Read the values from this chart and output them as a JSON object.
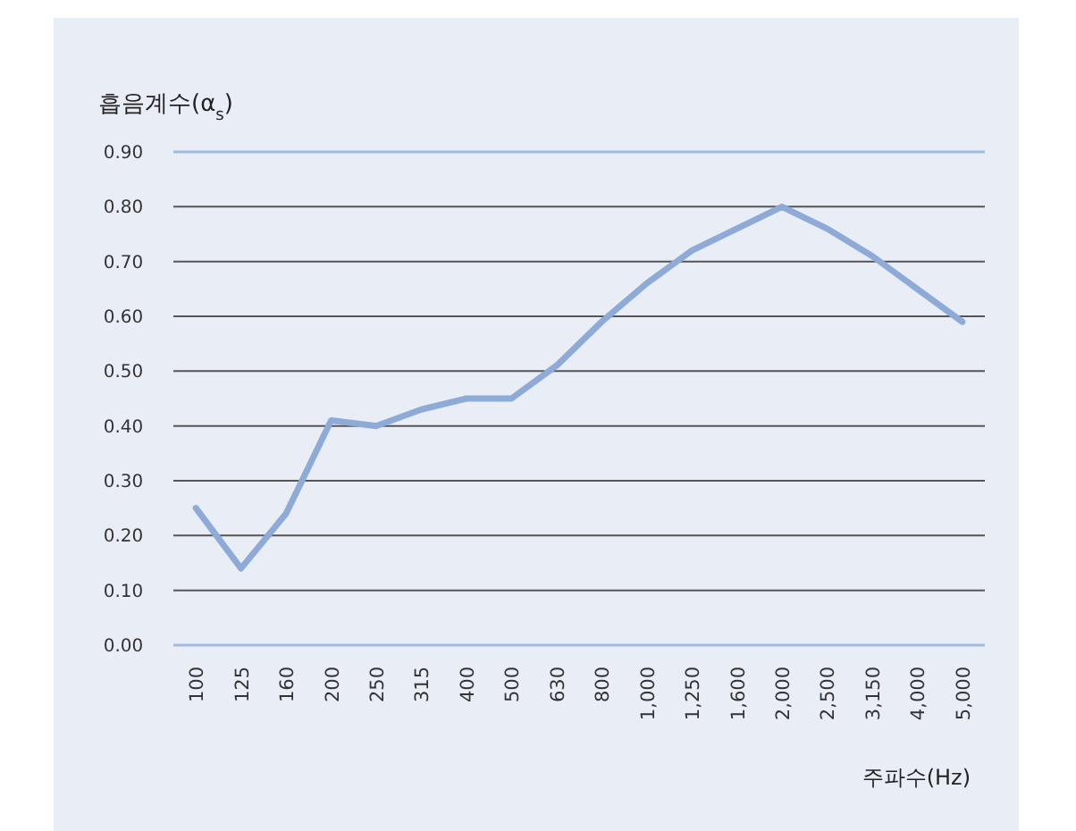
{
  "chart_data": {
    "type": "line",
    "ylabel": "흡음계수(α$_{s}$)",
    "xlabel": "주파수(Hz)",
    "categories": [
      "100",
      "125",
      "160",
      "200",
      "250",
      "315",
      "400",
      "500",
      "630",
      "800",
      "1,000",
      "1,250",
      "1,600",
      "2,000",
      "2,500",
      "3,150",
      "4,000",
      "5,000"
    ],
    "series": [
      {
        "color": "#8eaad6",
        "values": [
          0.25,
          0.14,
          0.24,
          0.41,
          0.4,
          0.43,
          0.45,
          0.45,
          0.51,
          0.59,
          0.66,
          0.72,
          0.76,
          0.8,
          0.76,
          0.71,
          0.65,
          0.59
        ]
      }
    ],
    "ylim": [
      0,
      0.9
    ],
    "yticks": [
      {
        "value": 0,
        "label": "0.00"
      },
      {
        "value": 0.1,
        "label": "0.10"
      },
      {
        "value": 0.2,
        "label": "0.20"
      },
      {
        "value": 0.3,
        "label": "0.30"
      },
      {
        "value": 0.4,
        "label": "0.40"
      },
      {
        "value": 0.5,
        "label": "0.50"
      },
      {
        "value": 0.6,
        "label": "0.60"
      },
      {
        "value": 0.7,
        "label": "0.70"
      },
      {
        "value": 0.8,
        "label": "0.80"
      },
      {
        "value": 0.9,
        "label": "0.90"
      }
    ],
    "grid": "y",
    "marker": "none",
    "line_style": "solid"
  }
}
